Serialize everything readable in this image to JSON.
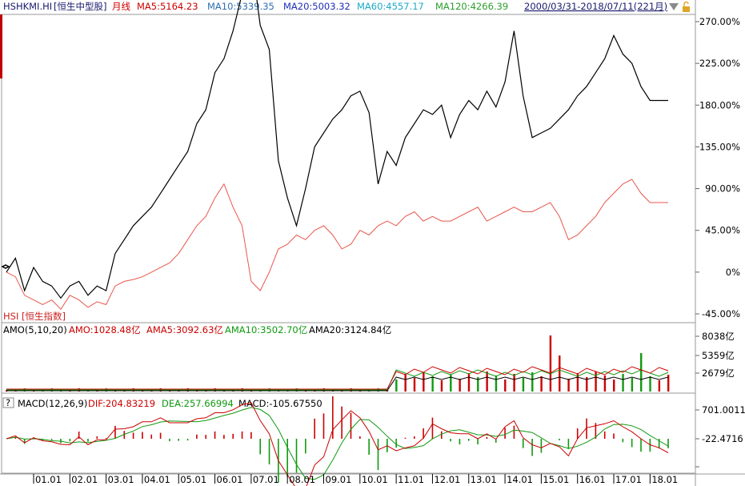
{
  "header": {
    "symbol": "HSHKMI.HI",
    "name": "[恒生中型股]",
    "period": "月线",
    "ma5": "MA5:5164.23",
    "ma10": "MA10:5339.35",
    "ma20": "MA20:5003.32",
    "ma60": "MA60:4557.17",
    "ma120": "MA120:4266.39",
    "range": "2000/03/31-2018/07/11(221月)"
  },
  "overlay_label": "HSI [恒生指数]",
  "price_axis": [
    "270.00%",
    "225.00%",
    "180.00%",
    "135.00%",
    "90.00%",
    "45.00%",
    "0%",
    "-45.00%"
  ],
  "amo": {
    "title": "AMO(5,10,20)",
    "amo": "AMO:1028.48亿",
    "ama5": "AMA5:3092.63亿",
    "ama10": "AMA10:3502.70亿",
    "ama20": "AMA20:3124.84亿",
    "axis": [
      "8038亿",
      "5359亿",
      "2679亿"
    ]
  },
  "macd": {
    "help": "?",
    "title": "MACD(12,26,9)",
    "dif": "DIF:204.83219",
    "dea": "DEA:257.66994",
    "macd": "MACD:-105.67550",
    "axis": [
      "701.0011",
      "-22.4716"
    ]
  },
  "x_axis": [
    "01.01",
    "02.01",
    "03.01",
    "04.01",
    "05.01",
    "06.01",
    "07.01",
    "08.01",
    "09.01",
    "10.01",
    "11.01",
    "12.01",
    "13.01",
    "14.01",
    "15.01",
    "16.01",
    "17.01",
    "18.01"
  ],
  "colors": {
    "main": "#000000",
    "hsi": "#e8564d",
    "ma5": "#cc0000",
    "ma10": "#2f6fb0",
    "ma20": "#1d2fb8",
    "ma60": "#1aa9c9",
    "ma120": "#2ca02c",
    "up": "#cc0000",
    "down": "#119911"
  },
  "chart_data": {
    "type": "line",
    "x": [
      2000.25,
      2000.5,
      2000.75,
      2001.0,
      2001.25,
      2001.5,
      2001.75,
      2002.0,
      2002.25,
      2002.5,
      2002.75,
      2003.0,
      2003.25,
      2003.5,
      2003.75,
      2004.0,
      2004.25,
      2004.5,
      2004.75,
      2005.0,
      2005.25,
      2005.5,
      2005.75,
      2006.0,
      2006.25,
      2006.5,
      2006.75,
      2007.0,
      2007.25,
      2007.5,
      2007.75,
      2008.0,
      2008.25,
      2008.5,
      2008.75,
      2009.0,
      2009.25,
      2009.5,
      2009.75,
      2010.0,
      2010.25,
      2010.5,
      2010.75,
      2011.0,
      2011.25,
      2011.5,
      2011.75,
      2012.0,
      2012.25,
      2012.5,
      2012.75,
      2013.0,
      2013.25,
      2013.5,
      2013.75,
      2014.0,
      2014.25,
      2014.5,
      2014.75,
      2015.0,
      2015.25,
      2015.5,
      2015.75,
      2016.0,
      2016.25,
      2016.5,
      2016.75,
      2017.0,
      2017.25,
      2017.5,
      2017.75,
      2018.0,
      2018.25,
      2018.5
    ],
    "series": [
      {
        "name": "HSHKMI.HI",
        "values": [
          0,
          15,
          -20,
          5,
          -10,
          -15,
          -28,
          -15,
          -10,
          -25,
          -15,
          -20,
          20,
          35,
          50,
          60,
          70,
          85,
          100,
          115,
          130,
          160,
          175,
          215,
          230,
          260,
          300,
          340,
          266,
          240,
          120,
          80,
          50,
          90,
          135,
          150,
          165,
          175,
          190,
          195,
          172,
          95,
          130,
          115,
          145,
          160,
          175,
          170,
          180,
          145,
          170,
          185,
          175,
          195,
          178,
          205,
          260,
          190,
          145,
          150,
          155,
          165,
          175,
          190,
          200,
          215,
          230,
          255,
          235,
          225,
          200,
          185,
          185,
          185
        ]
      },
      {
        "name": "HSI [恒生指数]",
        "values": [
          0,
          -5,
          -25,
          -30,
          -35,
          -30,
          -40,
          -25,
          -30,
          -38,
          -32,
          -35,
          -15,
          -10,
          -8,
          -5,
          0,
          5,
          10,
          20,
          35,
          50,
          60,
          80,
          95,
          70,
          50,
          -10,
          -20,
          0,
          25,
          30,
          40,
          35,
          45,
          50,
          40,
          25,
          30,
          45,
          40,
          50,
          55,
          50,
          60,
          65,
          55,
          60,
          55,
          55,
          60,
          65,
          70,
          55,
          60,
          65,
          70,
          65,
          65,
          70,
          75,
          60,
          35,
          40,
          50,
          60,
          75,
          85,
          95,
          100,
          85,
          75,
          75,
          75
        ]
      }
    ],
    "ylim": [
      -45,
      270
    ],
    "axis_ticks_y": [
      "270.00%",
      "225.00%",
      "180.00%",
      "135.00%",
      "90.00%",
      "45.00%",
      "0%",
      "-45.00%"
    ],
    "legend": "HSI [恒生指数]"
  }
}
